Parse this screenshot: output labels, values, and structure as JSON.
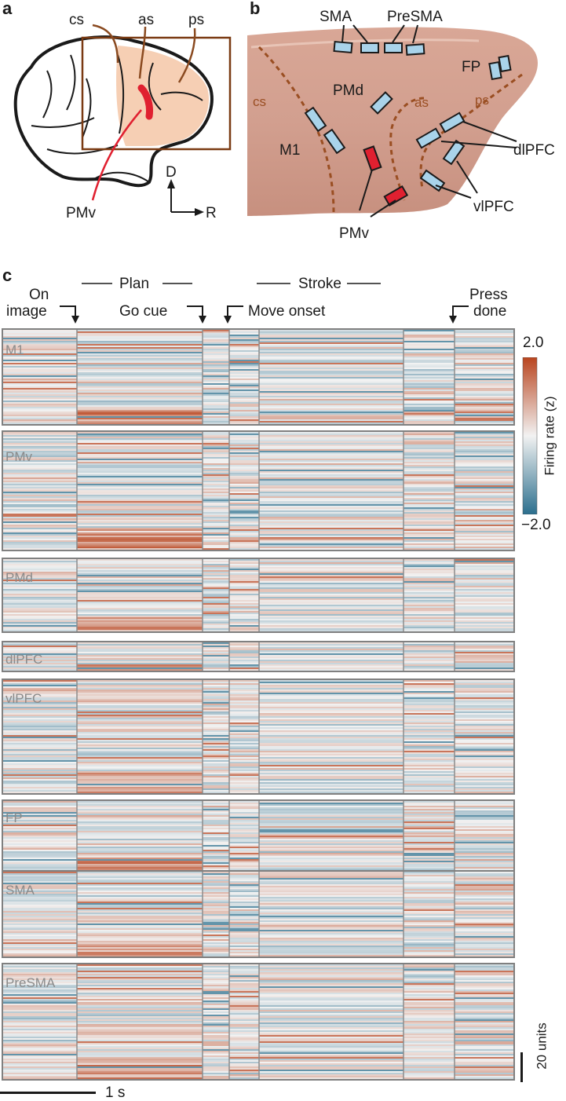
{
  "panels": {
    "a": {
      "letter": "a",
      "sulci": [
        "cs",
        "as",
        "ps"
      ],
      "pmv_label": "PMv",
      "axes": {
        "dorsal": "D",
        "rostral": "R"
      }
    },
    "b": {
      "letter": "b",
      "sulci": [
        "cs",
        "as",
        "ps"
      ],
      "regions": [
        "SMA",
        "PreSMA",
        "FP",
        "PMd",
        "M1",
        "dlPFC",
        "vlPFC",
        "PMv"
      ]
    },
    "c": {
      "letter": "c",
      "epochs": {
        "plan": "Plan",
        "stroke": "Stroke"
      },
      "events": {
        "on_image_1": "On",
        "on_image_2": "image",
        "go_cue": "Go cue",
        "move_onset": "Move onset",
        "press_1": "Press",
        "press_2": "done"
      },
      "areas": [
        {
          "name": "M1",
          "units": 65
        },
        {
          "name": "PMv",
          "units": 85
        },
        {
          "name": "PMd",
          "units": 50
        },
        {
          "name": "dlPFC",
          "units": 20
        },
        {
          "name": "vlPFC",
          "units": 60
        },
        {
          "name": "FP",
          "units": 30
        },
        {
          "name": "SMA",
          "units": 60
        },
        {
          "name": "PreSMA",
          "units": 75
        }
      ],
      "colorbar": {
        "max": "2.0",
        "min": "−2.0",
        "label": "Firing rate (z)",
        "colors": [
          "#2b6f8e",
          "#f2f2f2",
          "#b9451f"
        ]
      },
      "scalebars": {
        "time": "1 s",
        "units": "20 units"
      }
    }
  }
}
